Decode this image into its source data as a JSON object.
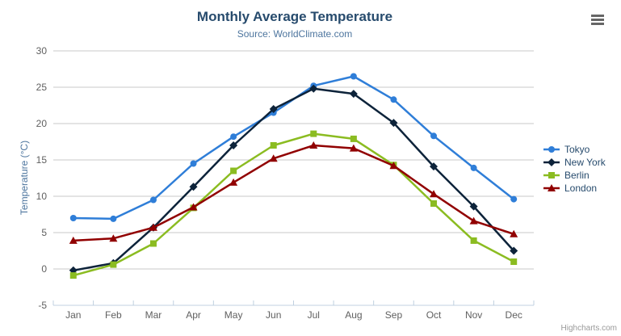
{
  "credit": "Highcharts.com",
  "toolbar": {
    "context_menu_icon": "hamburger-icon",
    "icon_color": "#666666"
  },
  "chart_data": {
    "type": "line",
    "title": "Monthly Average Temperature",
    "subtitle": "Source: WorldClimate.com",
    "xlabel": "",
    "ylabel": "Temperature (°C)",
    "categories": [
      "Jan",
      "Feb",
      "Mar",
      "Apr",
      "May",
      "Jun",
      "Jul",
      "Aug",
      "Sep",
      "Oct",
      "Nov",
      "Dec"
    ],
    "series": [
      {
        "name": "Tokyo",
        "color": "#2f7ed8",
        "marker": "circle",
        "values": [
          7.0,
          6.9,
          9.5,
          14.5,
          18.2,
          21.5,
          25.2,
          26.5,
          23.3,
          18.3,
          13.9,
          9.6
        ]
      },
      {
        "name": "New York",
        "color": "#0d233a",
        "marker": "diamond",
        "values": [
          -0.2,
          0.8,
          5.7,
          11.3,
          17.0,
          22.0,
          24.8,
          24.1,
          20.1,
          14.1,
          8.6,
          2.5
        ]
      },
      {
        "name": "Berlin",
        "color": "#8bbc21",
        "marker": "square",
        "values": [
          -0.9,
          0.6,
          3.5,
          8.4,
          13.5,
          17.0,
          18.6,
          17.9,
          14.3,
          9.0,
          3.9,
          1.0
        ]
      },
      {
        "name": "London",
        "color": "#910000",
        "marker": "triangle",
        "values": [
          3.9,
          4.2,
          5.7,
          8.5,
          11.9,
          15.2,
          17.0,
          16.6,
          14.2,
          10.3,
          6.6,
          4.8
        ]
      }
    ],
    "ylim": [
      -5,
      30
    ],
    "ytick_step": 5,
    "grid": true,
    "legend_position": "right",
    "colors": {
      "grid_line": "#c8c8c8",
      "axis_line": "#c0d0e0",
      "tick_label": "#606060",
      "legend_text": "#274b6d",
      "title_text": "#274b6d",
      "subtitle_text": "#4d759e"
    }
  }
}
